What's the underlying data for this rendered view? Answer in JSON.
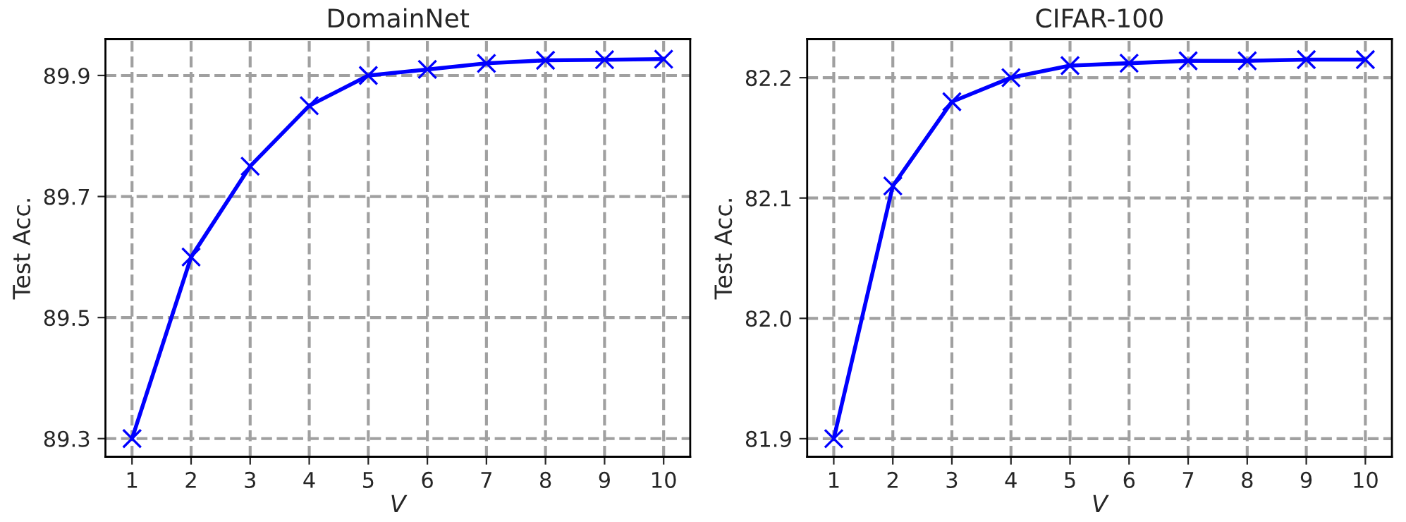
{
  "chart_data": [
    {
      "type": "line",
      "title": "DomainNet",
      "xlabel": "V",
      "ylabel": "Test Acc.",
      "x": [
        1,
        2,
        3,
        4,
        5,
        6,
        7,
        8,
        9,
        10
      ],
      "series": [
        {
          "color": "#0000ff",
          "values": [
            89.3,
            89.6,
            89.75,
            89.85,
            89.9,
            89.91,
            89.92,
            89.925,
            89.926,
            89.927
          ]
        }
      ],
      "xlim": [
        0.55,
        10.45
      ],
      "xticks": [
        1,
        2,
        3,
        4,
        5,
        6,
        7,
        8,
        9,
        10
      ],
      "ylim": [
        89.27,
        89.96
      ],
      "yticks": [
        89.3,
        89.5,
        89.7,
        89.9
      ],
      "grid": true,
      "marker": "cross",
      "line_style": "solid"
    },
    {
      "type": "line",
      "title": "CIFAR-100",
      "xlabel": "V",
      "ylabel": "Test Acc.",
      "x": [
        1,
        2,
        3,
        4,
        5,
        6,
        7,
        8,
        9,
        10
      ],
      "series": [
        {
          "color": "#0000ff",
          "values": [
            81.9,
            82.11,
            82.18,
            82.2,
            82.21,
            82.212,
            82.214,
            82.214,
            82.215,
            82.215
          ]
        }
      ],
      "xlim": [
        0.55,
        10.45
      ],
      "xticks": [
        1,
        2,
        3,
        4,
        5,
        6,
        7,
        8,
        9,
        10
      ],
      "ylim": [
        81.885,
        82.232
      ],
      "yticks": [
        81.9,
        {
          "value": 82.0,
          "label": "82.0"
        },
        82.1,
        82.2
      ],
      "grid": true,
      "marker": "cross",
      "line_style": "solid"
    }
  ]
}
